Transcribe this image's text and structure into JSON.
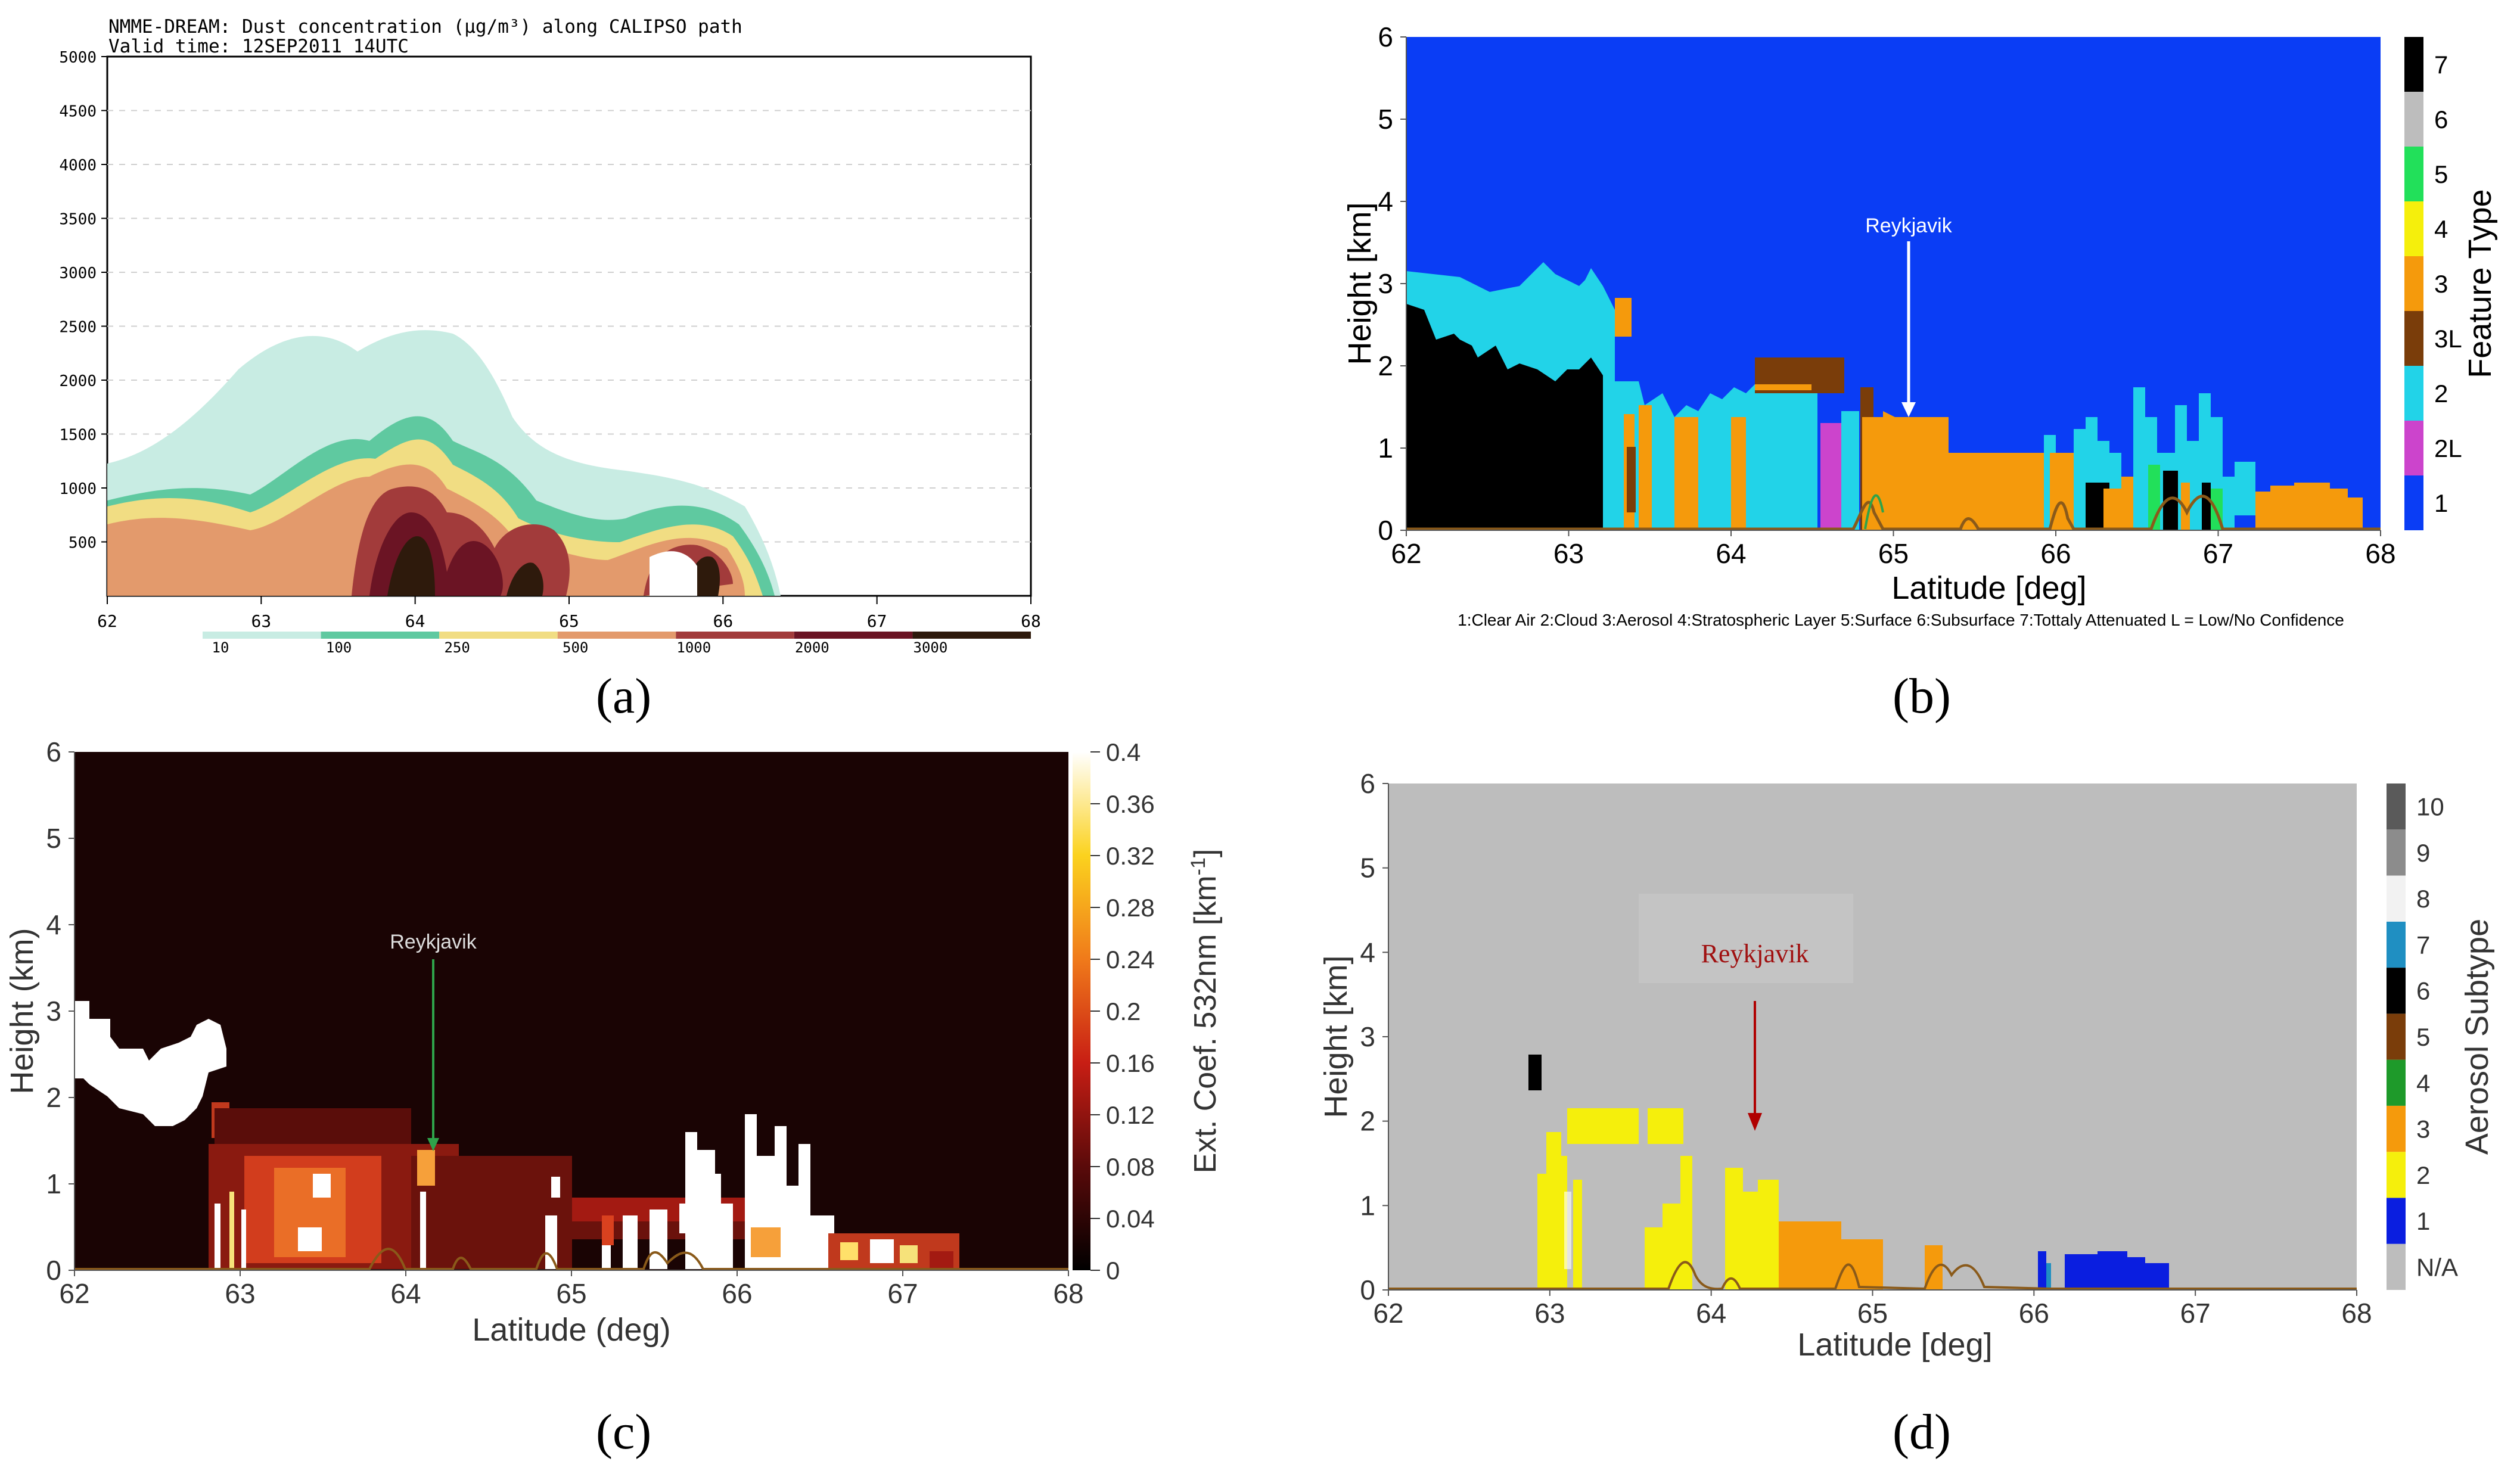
{
  "panels": {
    "a": {
      "caption": "(a)",
      "chart_data": {
        "type": "area",
        "title": "NMME-DREAM: Dust concentration (µg/m³) along CALIPSO path",
        "subtitle": "Valid time: 12SEP2011 14UTC",
        "xlim": [
          62,
          68
        ],
        "ylim": [
          0,
          5000
        ],
        "x_ticks": [
          "62",
          "63",
          "64",
          "65",
          "66",
          "67",
          "68"
        ],
        "y_ticks": [
          "500",
          "1000",
          "1500",
          "2000",
          "2500",
          "3000",
          "3500",
          "4000",
          "4500",
          "5000"
        ],
        "colorbar_labels": [
          "10",
          "100",
          "250",
          "500",
          "1000",
          "2000",
          "3000"
        ],
        "colorbar_colors": [
          "#c8ece3",
          "#5fc9a0",
          "#f1dd83",
          "#e39a6c",
          "#a23b3b",
          "#6b1424",
          "#2e1a0c"
        ]
      }
    },
    "b": {
      "caption": "(b)",
      "chart_data": {
        "type": "heatmap",
        "xlabel": "Latitude [deg]",
        "ylabel": "Height [km]",
        "xlim": [
          62,
          68
        ],
        "ylim": [
          0,
          6
        ],
        "x_ticks": [
          "62",
          "63",
          "64",
          "65",
          "66",
          "67",
          "68"
        ],
        "y_ticks": [
          "0",
          "1",
          "2",
          "3",
          "4",
          "5",
          "6"
        ],
        "colorbar_title": "Feature Type",
        "colorbar_labels": [
          "1",
          "2L",
          "2",
          "3L",
          "3",
          "4",
          "5",
          "6",
          "7"
        ],
        "colorbar_colors": [
          "#0a3df5",
          "#cc44cc",
          "#22d3e8",
          "#7a3d0a",
          "#f59a0c",
          "#f5ef0c",
          "#22e05a",
          "#bdbdbd",
          "#000000"
        ],
        "annotation": "Reykjavik",
        "legend_note": "1:Clear Air  2:Cloud  3:Aerosol  4:Stratospheric Layer  5:Surface  6:Subsurface  7:Tottaly Attenuated    L = Low/No Confidence"
      }
    },
    "c": {
      "caption": "(c)",
      "chart_data": {
        "type": "heatmap",
        "xlabel": "Latitude (deg)",
        "ylabel": "Height (km)",
        "xlim": [
          62,
          68
        ],
        "ylim": [
          0,
          6
        ],
        "x_ticks": [
          "62",
          "63",
          "64",
          "65",
          "66",
          "67",
          "68"
        ],
        "y_ticks": [
          "0",
          "1",
          "2",
          "3",
          "4",
          "5",
          "6"
        ],
        "colorbar_title": "Ext. Coef. 532nm [km",
        "colorbar_title_sup": "-1",
        "colorbar_title_end": "]",
        "colorbar_range": [
          0,
          0.4
        ],
        "colorbar_labels": [
          "0",
          "0.04",
          "0.08",
          "0.12",
          "0.16",
          "0.2",
          "0.24",
          "0.28",
          "0.32",
          "0.36",
          "0.4"
        ],
        "annotation": "Reykjavik"
      }
    },
    "d": {
      "caption": "(d)",
      "chart_data": {
        "type": "heatmap",
        "xlabel": "Latitude [deg]",
        "ylabel": "Height [km]",
        "xlim": [
          62,
          68
        ],
        "ylim": [
          0,
          6
        ],
        "x_ticks": [
          "62",
          "63",
          "64",
          "65",
          "66",
          "67",
          "68"
        ],
        "y_ticks": [
          "0",
          "1",
          "2",
          "3",
          "4",
          "5",
          "6"
        ],
        "colorbar_title": "Aerosol Subtype",
        "colorbar_labels": [
          "N/A",
          "1",
          "2",
          "3",
          "4",
          "5",
          "6",
          "7",
          "8",
          "9",
          "10"
        ],
        "colorbar_colors": [
          "#bdbdbd",
          "#0a1ee0",
          "#f5ef0c",
          "#f59a0c",
          "#1e9a2a",
          "#7a3d0a",
          "#000000",
          "#1f8fc2",
          "#f2f2f2",
          "#8c8c8c",
          "#5a5a5a"
        ],
        "annotation": "Reykjavik"
      }
    }
  }
}
